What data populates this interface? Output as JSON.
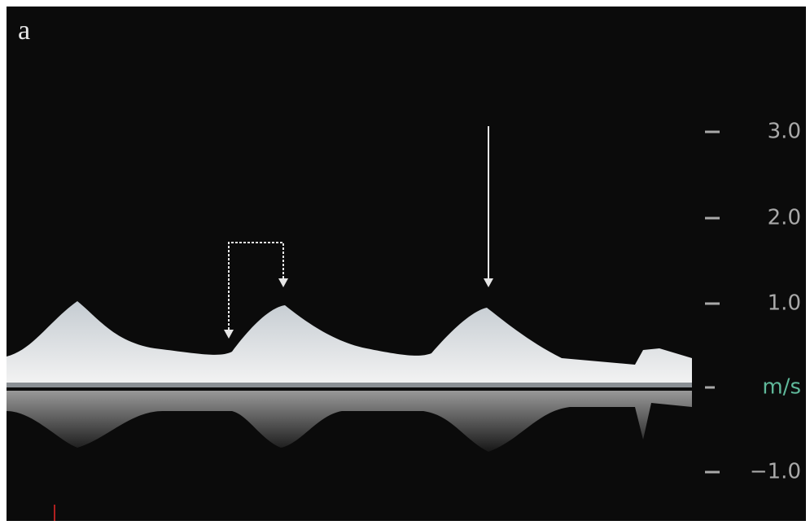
{
  "panel_label": "a",
  "scale": {
    "labels": [
      "3.0",
      "2.0",
      "1.0",
      "m/s",
      "−1.0"
    ]
  }
}
